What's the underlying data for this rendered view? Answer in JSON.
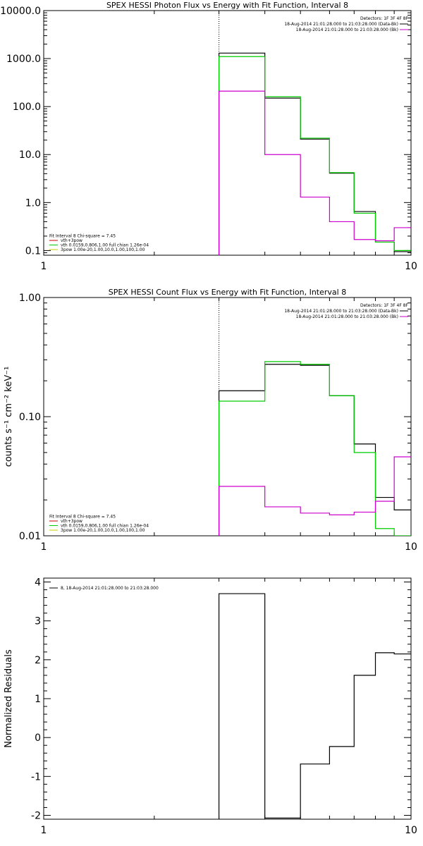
{
  "chart_data": [
    {
      "type": "line",
      "title": "SPEX HESSI Photon Flux vs Energy with Fit Function, Interval 8",
      "xlabel": "",
      "ylabel": "",
      "xscale": "log",
      "yscale": "log",
      "xlim": [
        1,
        10
      ],
      "ylim": [
        0.08,
        10000
      ],
      "xticks": [
        1,
        10
      ],
      "xtick_labels": [
        "1",
        "10"
      ],
      "yticks": [
        0.1,
        1,
        10,
        100,
        1000,
        10000
      ],
      "ytick_labels": [
        "0.1",
        "1.0",
        "10.0",
        "100.0",
        "1000.0",
        "10000.0"
      ],
      "vline_x": 3,
      "legend_right": {
        "header": "Detectors: 1F 3F 4F 8F",
        "entries": [
          {
            "label": "18-Aug-2014 21:01:28.000 to 21:03:28.000 (Data-Bk)",
            "color": "#000000"
          },
          {
            "label": "18-Aug-2014 21:01:28.000 to 21:03:28.000 (Bk)",
            "color": "#cc00cc"
          }
        ]
      },
      "legend_left": {
        "header": "Fit Interval 8   Chi-square = 7.45",
        "entries": [
          {
            "label": "vth+3pow",
            "color": "#cc0000"
          },
          {
            "label": "vth 0.0159,0.806,1.00  full chian 1.26e-04",
            "color": "#00cc00"
          },
          {
            "label": "3pow 1.00e-20,1.00,10.0,1.00,100,1.00",
            "color": "#cccc00"
          }
        ]
      },
      "bin_edges": [
        3,
        4,
        5,
        6,
        7,
        8,
        9,
        10
      ],
      "series": [
        {
          "color": "#000000",
          "values": [
            1300,
            150,
            21,
            4.1,
            0.65,
            0.15,
            0.095
          ]
        },
        {
          "color": "#00cc00",
          "values": [
            1100,
            160,
            22,
            4.2,
            0.6,
            0.15,
            0.1
          ]
        },
        {
          "color": "#cc00cc",
          "values": [
            210,
            10,
            1.3,
            0.4,
            0.17,
            0.16,
            0.3
          ]
        }
      ]
    },
    {
      "type": "line",
      "title": "SPEX HESSI Count Flux vs Energy with Fit Function, Interval 8",
      "xlabel": "",
      "ylabel": "counts s⁻¹ cm⁻² keV⁻¹",
      "xscale": "log",
      "yscale": "log",
      "xlim": [
        1,
        10
      ],
      "ylim": [
        0.01,
        1
      ],
      "xticks": [
        1,
        10
      ],
      "xtick_labels": [
        "1",
        "10"
      ],
      "yticks": [
        0.01,
        0.1,
        1
      ],
      "ytick_labels": [
        "0.01",
        "0.10",
        "1.00"
      ],
      "vline_x": 3,
      "legend_right": {
        "header": "Detectors: 1F 3F 4F 8F",
        "entries": [
          {
            "label": "18-Aug-2014 21:01:28.000 to 21:03:28.000 (Data-Bk)",
            "color": "#000000"
          },
          {
            "label": "18-Aug-2014 21:01:28.000 to 21:03:28.000 (Bk)",
            "color": "#cc00cc"
          }
        ]
      },
      "legend_left": {
        "header": "Fit Interval 8   Chi-square = 7.45",
        "entries": [
          {
            "label": "vth+3pow",
            "color": "#cc0000"
          },
          {
            "label": "vth 0.0159,0.806,1.00  full chian 1.26e-04",
            "color": "#00cc00"
          },
          {
            "label": "3pow 1.00e-20,1.00,10.0,1.00,100,1.00",
            "color": "#cccc00"
          }
        ]
      },
      "bin_edges": [
        3,
        4,
        5,
        6,
        7,
        8,
        9,
        10
      ],
      "series": [
        {
          "color": "#000000",
          "values": [
            0.165,
            0.275,
            0.27,
            0.15,
            0.059,
            0.021,
            0.0165
          ]
        },
        {
          "color": "#00cc00",
          "values": [
            0.135,
            0.29,
            0.275,
            0.15,
            0.05,
            0.0115,
            0.009
          ]
        },
        {
          "color": "#cc00cc",
          "values": [
            0.026,
            0.0175,
            0.0155,
            0.015,
            0.0158,
            0.0195,
            0.046
          ]
        }
      ]
    },
    {
      "type": "line",
      "title": "",
      "xlabel": "",
      "ylabel": "Normalized Residuals",
      "xscale": "log",
      "yscale": "linear",
      "xlim": [
        1,
        10
      ],
      "ylim": [
        -2.1,
        4.1
      ],
      "xticks": [
        1,
        10
      ],
      "xtick_labels": [
        "1",
        "10"
      ],
      "yticks": [
        -2,
        -1,
        0,
        1,
        2,
        3,
        4
      ],
      "ytick_labels": [
        "-2",
        "-1",
        "0",
        "1",
        "2",
        "3",
        "4"
      ],
      "legend_left": {
        "entries": [
          {
            "label": "8, 18-Aug-2014 21:01:28.000 to 21:03:28.000",
            "color": "#000000"
          }
        ]
      },
      "bin_edges": [
        3,
        4,
        5,
        6,
        7,
        8,
        9,
        10
      ],
      "series": [
        {
          "color": "#000000",
          "values": [
            3.7,
            -2.07,
            -0.68,
            -0.23,
            1.6,
            2.18,
            2.15
          ]
        }
      ]
    }
  ]
}
